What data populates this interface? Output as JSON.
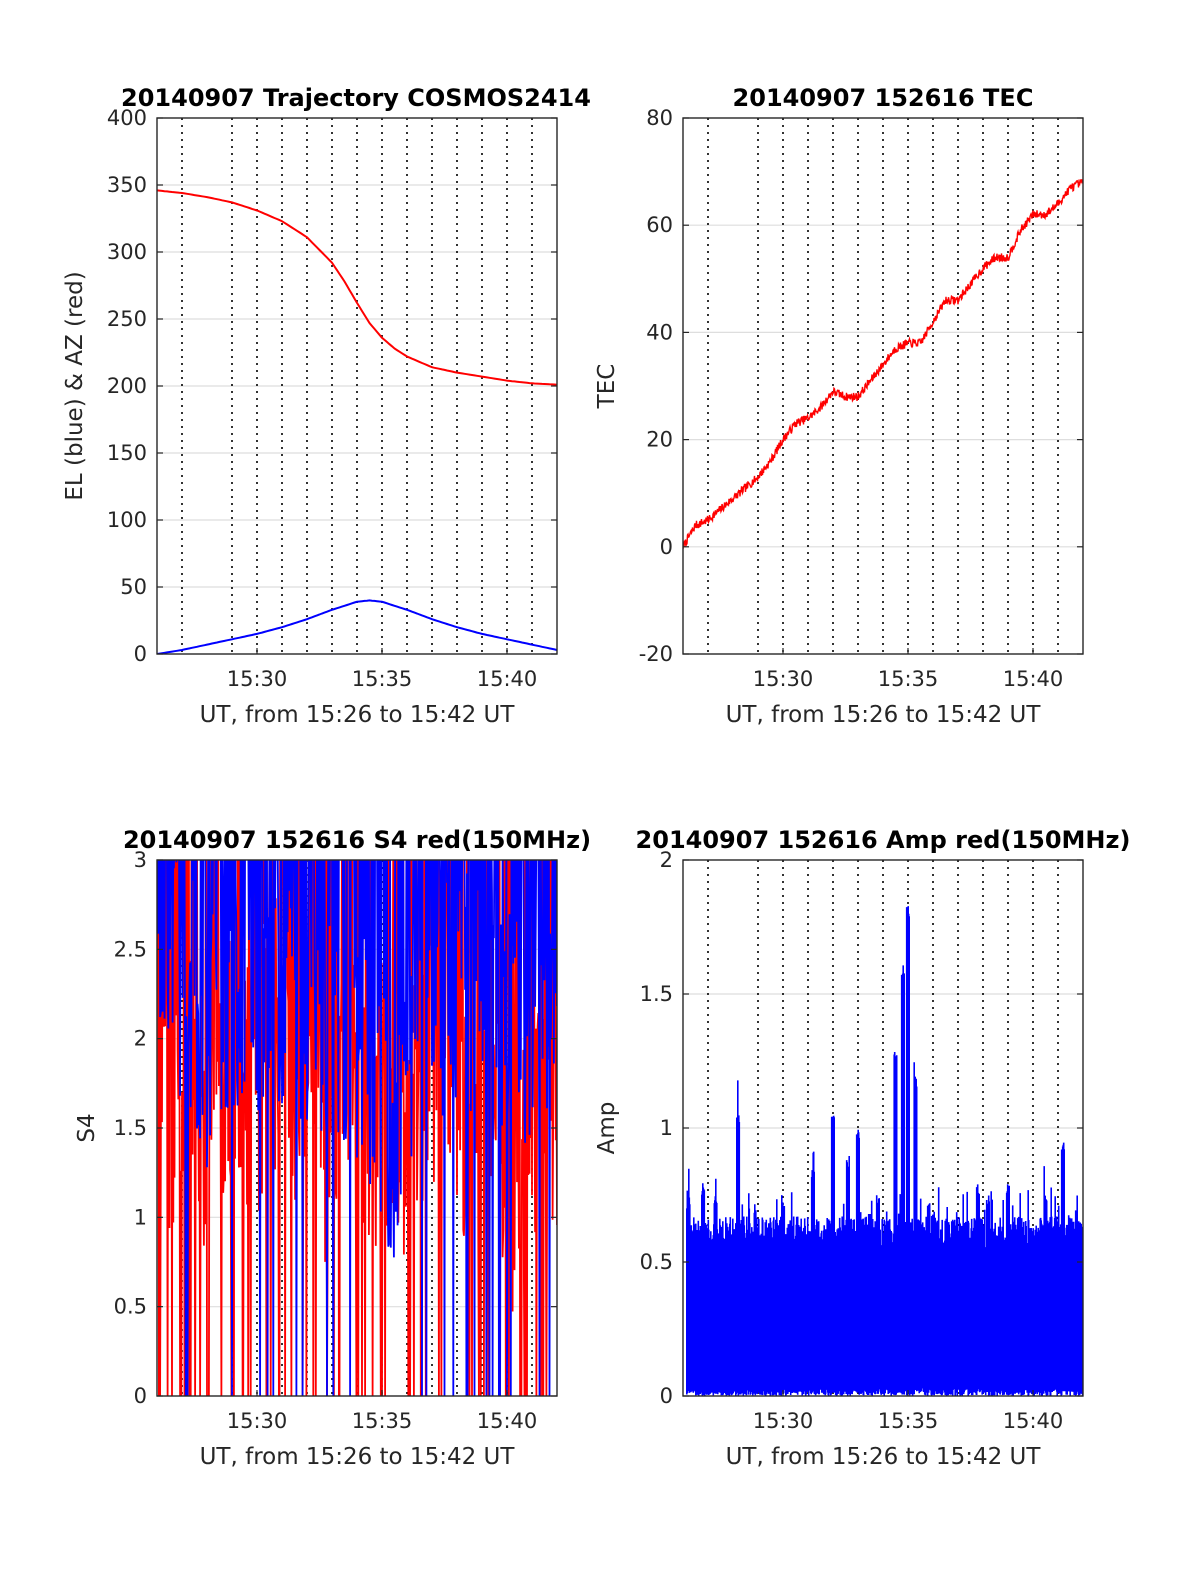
{
  "chart_data": [
    {
      "type": "line",
      "title": "20140907 Trajectory COSMOS2414",
      "xlabel": "UT, from 15:26 to 15:42 UT",
      "ylabel": "EL (blue) & AZ (red)",
      "x_range": [
        "15:26",
        "15:42"
      ],
      "x_ticks": [
        "15:30",
        "15:35",
        "15:40"
      ],
      "ylim": [
        0,
        400
      ],
      "y_ticks": [
        "0",
        "50",
        "100",
        "150",
        "200",
        "250",
        "300",
        "350",
        "400"
      ],
      "grid": "on (solid horizontal, dotted vertical every minute)",
      "series": [
        {
          "color": "#ff0000",
          "x_minutes_after_1526": [
            0,
            1,
            2,
            3,
            4,
            5,
            6,
            7,
            7.5,
            8,
            8.5,
            9,
            9.5,
            10,
            11,
            12,
            13,
            14,
            15,
            16
          ],
          "values": [
            346,
            344,
            341,
            337,
            331,
            323,
            311,
            292,
            278,
            262,
            247,
            236,
            228,
            222,
            214,
            210,
            207,
            204,
            202,
            201
          ]
        },
        {
          "color": "#0000ff",
          "x_minutes_after_1526": [
            0,
            1,
            2,
            3,
            4,
            5,
            6,
            7,
            8,
            8.5,
            9,
            10,
            11,
            12,
            13,
            14,
            15,
            16
          ],
          "values": [
            0,
            3,
            7,
            11,
            15,
            20,
            26,
            33,
            39,
            40,
            39,
            33,
            26,
            20,
            15,
            11,
            7,
            3
          ]
        }
      ]
    },
    {
      "type": "line",
      "title": "20140907 152616 TEC",
      "xlabel": "UT, from 15:26 to 15:42 UT",
      "ylabel": "TEC",
      "x_range": [
        "15:26",
        "15:42"
      ],
      "x_ticks": [
        "15:30",
        "15:35",
        "15:40"
      ],
      "ylim": [
        -20,
        80
      ],
      "y_ticks": [
        "-20",
        "0",
        "20",
        "40",
        "60",
        "80"
      ],
      "grid": "on (solid horizontal, dotted vertical every minute)",
      "series": [
        {
          "color": "#ff0000",
          "x_minutes_after_1526": [
            0,
            0.5,
            1,
            1.5,
            2,
            2.5,
            3,
            3.5,
            4,
            4.5,
            5,
            5.5,
            6,
            6.5,
            7,
            7.5,
            8,
            8.5,
            9,
            9.5,
            10,
            10.5,
            11,
            11.5,
            12,
            12.5,
            13,
            13.5,
            14,
            14.5,
            15,
            15.5,
            16
          ],
          "values": [
            0,
            4,
            5,
            7,
            9,
            11,
            13,
            16,
            20,
            23,
            24,
            26,
            29,
            28,
            28,
            31,
            34,
            37,
            38,
            38,
            42,
            46,
            46,
            49,
            52,
            54,
            54,
            59,
            62,
            62,
            64,
            67,
            68
          ]
        }
      ]
    },
    {
      "type": "line",
      "title": "20140907 152616 S4 red(150MHz)",
      "xlabel": "UT, from 15:26 to 15:42 UT",
      "ylabel": "S4",
      "x_range": [
        "15:26",
        "15:42"
      ],
      "x_ticks": [
        "15:30",
        "15:35",
        "15:40"
      ],
      "ylim": [
        0,
        3
      ],
      "y_ticks": [
        "0",
        "0.5",
        "1",
        "1.5",
        "2",
        "2.5",
        "3"
      ],
      "grid": "on (solid horizontal, dotted vertical every minute)",
      "series": [
        {
          "color": "#ff0000",
          "x_minutes_after_1526": [
            0,
            0.5,
            1,
            1.5,
            2,
            2.5,
            3,
            3.5,
            4,
            4.5,
            5,
            5.5,
            6,
            6.5,
            7,
            7.5,
            8,
            8.5,
            9,
            9.5,
            10,
            10.5,
            11,
            11.5,
            12,
            12.5,
            13,
            13.5,
            14,
            14.5,
            15,
            15.5,
            16
          ],
          "values": [
            1.9,
            1.5,
            1.7,
            1.4,
            1.3,
            1.6,
            1.8,
            1.5,
            1.6,
            1.8,
            1.9,
            1.7,
            1.5,
            1.3,
            1.5,
            1.8,
            1.6,
            1.4,
            1.5,
            1.3,
            1.2,
            1.6,
            1.7,
            1.8,
            1.5,
            1.3,
            1.4,
            1.7,
            1.2,
            1.0,
            1.1,
            1.4,
            1.5
          ]
        },
        {
          "color": "#0000ff",
          "x_minutes_after_1526": [
            0,
            0.5,
            1,
            1.5,
            2,
            2.5,
            3,
            3.5,
            4,
            4.5,
            5,
            5.5,
            6,
            6.5,
            7,
            7.5,
            8,
            8.5,
            9,
            9.5,
            10,
            10.5,
            11,
            11.5,
            12,
            12.5,
            13,
            13.5,
            14,
            14.5,
            15,
            15.5,
            16
          ],
          "values": [
            2.3,
            2.1,
            2.0,
            1.9,
            1.7,
            2.0,
            1.8,
            2.1,
            1.9,
            2.2,
            2.0,
            1.9,
            1.9,
            1.8,
            1.8,
            1.7,
            1.7,
            1.6,
            1.4,
            1.1,
            1.6,
            1.9,
            1.8,
            2.0,
            1.9,
            2.0,
            2.1,
            1.9,
            1.9,
            1.8,
            1.7,
            1.8,
            1.6
          ]
        }
      ]
    },
    {
      "type": "line",
      "title": "20140907 152616 Amp red(150MHz)",
      "xlabel": "UT, from 15:26 to 15:42 UT",
      "ylabel": "Amp",
      "x_range": [
        "15:26",
        "15:42"
      ],
      "x_ticks": [
        "15:30",
        "15:35",
        "15:40"
      ],
      "ylim": [
        0,
        2
      ],
      "y_ticks": [
        "0",
        "0.5",
        "1",
        "1.5",
        "2"
      ],
      "grid": "on (solid horizontal, dotted vertical every minute)",
      "series": [
        {
          "color": "#0000ff",
          "x_minutes_after_1526": [
            0.2,
            0.8,
            1.3,
            2.2,
            2.9,
            4.0,
            5.2,
            6.0,
            6.6,
            7.0,
            7.8,
            8.5,
            8.8,
            9.0,
            9.3,
            10.0,
            11.8,
            12.2,
            13.0,
            14.5,
            15.2,
            15.9
          ],
          "values": [
            0.75,
            0.8,
            0.75,
            1.05,
            0.7,
            0.75,
            0.85,
            1.05,
            0.9,
            1.0,
            0.75,
            1.3,
            1.6,
            1.83,
            1.2,
            0.7,
            0.8,
            0.75,
            0.8,
            0.75,
            0.95,
            0.65
          ]
        }
      ]
    }
  ]
}
